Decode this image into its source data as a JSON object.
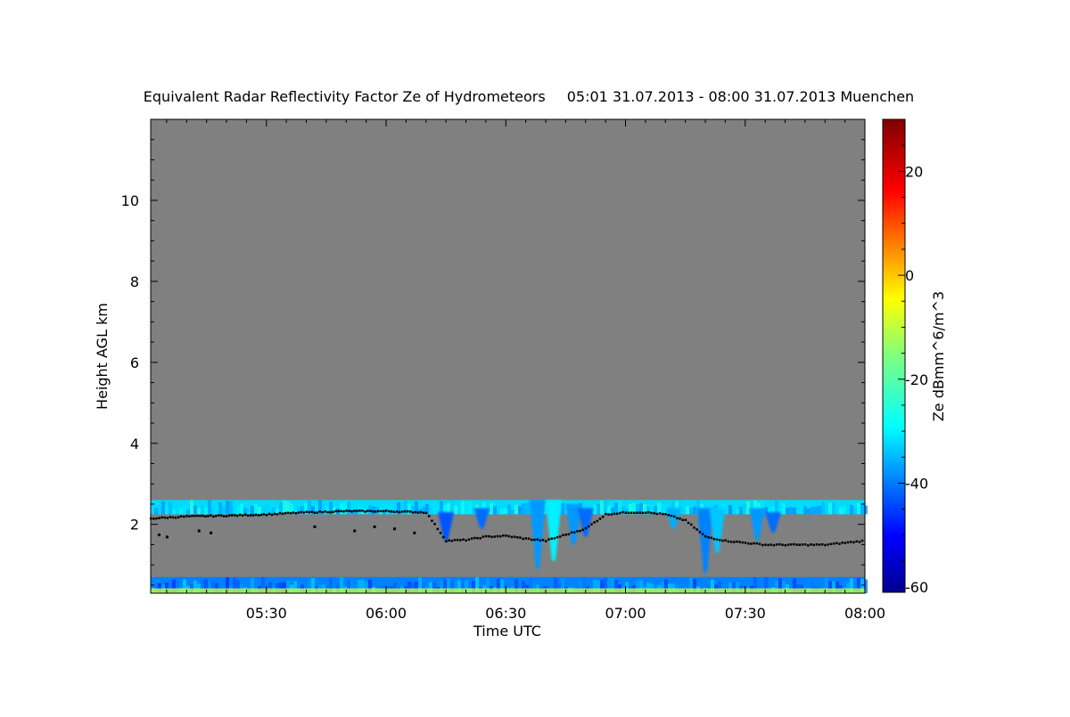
{
  "chart_data": {
    "type": "heatmap",
    "title": "Equivalent Radar Reflectivity Factor Ze of Hydrometeors",
    "subtitle": "05:01 31.07.2013 - 08:00 31.07.2013 Muenchen",
    "xlabel": "Time UTC",
    "ylabel": "Height AGL km",
    "x_ticks": [
      "05:30",
      "06:00",
      "06:30",
      "07:00",
      "07:30",
      "08:00"
    ],
    "x_tick_minutes": [
      330,
      360,
      390,
      420,
      450,
      480
    ],
    "xlim_minutes": [
      301,
      480
    ],
    "y_ticks": [
      2,
      4,
      6,
      8,
      10
    ],
    "ylim": [
      0.3,
      12
    ],
    "colorbar": {
      "label": "Ze dBmm^6/m^3",
      "ticks": [
        20,
        0,
        -20,
        -40,
        -60
      ],
      "range": [
        -61,
        30
      ],
      "colormap": "jet"
    },
    "background_color": "#808080",
    "cloud_layers": [
      {
        "t_start": 301,
        "t_end": 480,
        "h_bottom": 2.25,
        "h_top": 2.6,
        "ze_dbz": -30
      },
      {
        "t_start": 301,
        "t_end": 480,
        "h_bottom": 0.3,
        "h_top": 0.7,
        "ze_dbz": -38
      }
    ],
    "fall_streaks": [
      {
        "t": 375,
        "h_top": 2.3,
        "h_bottom": 1.6,
        "ze_dbz": -42
      },
      {
        "t": 384,
        "h_top": 2.4,
        "h_bottom": 1.9,
        "ze_dbz": -40
      },
      {
        "t": 398,
        "h_top": 2.6,
        "h_bottom": 0.9,
        "ze_dbz": -36
      },
      {
        "t": 402,
        "h_top": 2.6,
        "h_bottom": 1.1,
        "ze_dbz": -28
      },
      {
        "t": 407,
        "h_top": 2.5,
        "h_bottom": 1.5,
        "ze_dbz": -36
      },
      {
        "t": 410,
        "h_top": 2.4,
        "h_bottom": 1.7,
        "ze_dbz": -40
      },
      {
        "t": 432,
        "h_top": 2.4,
        "h_bottom": 1.9,
        "ze_dbz": -34
      },
      {
        "t": 440,
        "h_top": 2.4,
        "h_bottom": 0.8,
        "ze_dbz": -38
      },
      {
        "t": 443,
        "h_top": 2.4,
        "h_bottom": 1.3,
        "ze_dbz": -32
      },
      {
        "t": 453,
        "h_top": 2.4,
        "h_bottom": 1.6,
        "ze_dbz": -36
      },
      {
        "t": 457,
        "h_top": 2.3,
        "h_bottom": 1.8,
        "ze_dbz": -40
      }
    ],
    "cloud_base_series": {
      "t": [
        301,
        310,
        320,
        330,
        340,
        350,
        360,
        370,
        375,
        380,
        385,
        390,
        395,
        400,
        405,
        410,
        415,
        420,
        425,
        430,
        435,
        440,
        445,
        450,
        455,
        460,
        465,
        470,
        475,
        480
      ],
      "h": [
        2.15,
        2.2,
        2.22,
        2.25,
        2.3,
        2.33,
        2.33,
        2.3,
        1.6,
        1.62,
        1.7,
        1.72,
        1.65,
        1.6,
        1.75,
        1.9,
        2.25,
        2.3,
        2.3,
        2.25,
        2.1,
        1.7,
        1.6,
        1.55,
        1.5,
        1.5,
        1.5,
        1.5,
        1.55,
        1.6
      ]
    },
    "lower_base_points": {
      "t": [
        303,
        305,
        313,
        316,
        342,
        352,
        357,
        362,
        367
      ],
      "h": [
        1.75,
        1.7,
        1.85,
        1.8,
        1.95,
        1.85,
        1.95,
        1.9,
        1.8
      ]
    }
  }
}
